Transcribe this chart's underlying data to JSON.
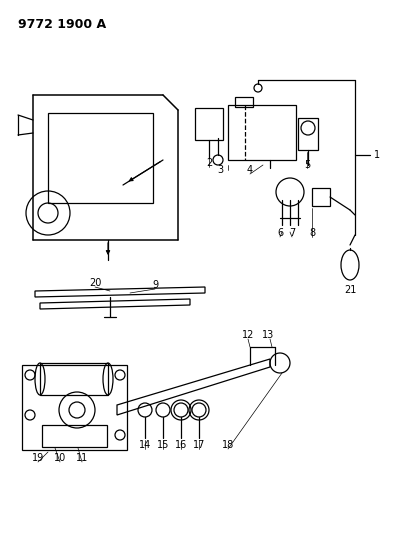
{
  "title": "9772 1900 A",
  "bg_color": "#ffffff",
  "line_color": "#000000"
}
